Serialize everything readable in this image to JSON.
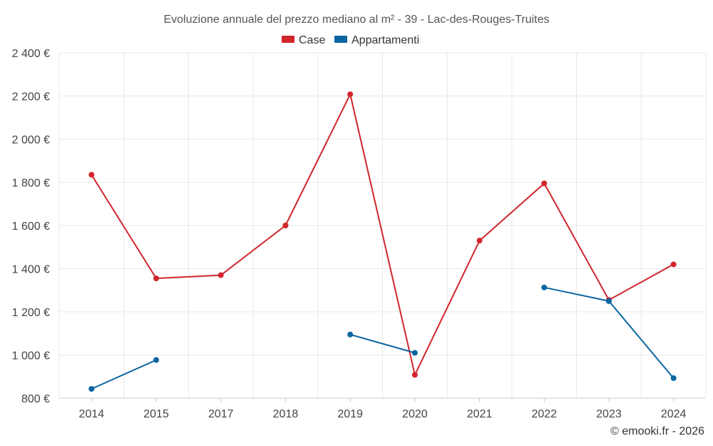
{
  "chart_data": {
    "type": "line",
    "title": "Evoluzione annuale del prezzo mediano al m² - 39 - Lac-des-Rouges-Truites",
    "categories": [
      "2014",
      "2015",
      "2017",
      "2018",
      "2019",
      "2020",
      "2021",
      "2022",
      "2023",
      "2024"
    ],
    "ylim": [
      800,
      2400
    ],
    "yticks": [
      800,
      1000,
      1200,
      1400,
      1600,
      1800,
      2000,
      2200,
      2400
    ],
    "ytick_labels": [
      "800 €",
      "1 000 €",
      "1 200 €",
      "1 400 €",
      "1 600 €",
      "1 800 €",
      "2 000 €",
      "2 200 €",
      "2 400 €"
    ],
    "grid": true,
    "legend_position": "top-center",
    "series": [
      {
        "name": "Case",
        "color": "#d0262c",
        "values": [
          1835,
          1355,
          1370,
          1600,
          2208,
          908,
          1530,
          1795,
          1255,
          1420
        ]
      },
      {
        "name": "Appartamenti",
        "color": "#0b65a0",
        "values": [
          843,
          977,
          null,
          null,
          1095,
          1010,
          null,
          1313,
          1250,
          893
        ]
      }
    ]
  },
  "credit": "© emooki.fr - 2026"
}
